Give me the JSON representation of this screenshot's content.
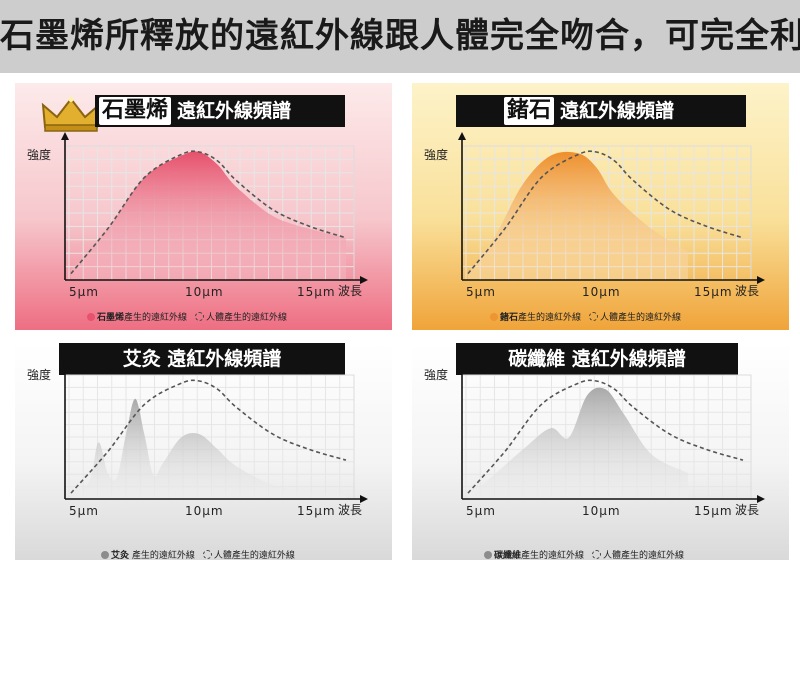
{
  "header": {
    "title": "石墨烯所釋放的遠紅外線跟人體完全吻合，可完全利用"
  },
  "colors": {
    "graphene": "#e8526c",
    "germanium": "#ef9432",
    "moxibustion": "#9a9a9a",
    "carbon_fiber": "#9a9a9a",
    "reference_curve": "#555555"
  },
  "panels": [
    {
      "title_boxed": "石墨烯",
      "title_rest": "遠紅外線頻譜",
      "y_label": "強度",
      "x_label": "波長",
      "ticks": [
        "5μm",
        "10μm",
        "15μm"
      ],
      "legend_material": "石墨烯",
      "legend_material_suffix": "產生的遠紅外線",
      "legend_human": "人體產生的遠紅外線"
    },
    {
      "title_boxed": "鍺石",
      "title_rest": "遠紅外線頻譜",
      "y_label": "強度",
      "x_label": "波長",
      "ticks": [
        "5μm",
        "10μm",
        "15μm"
      ],
      "legend_material": "鍺石",
      "legend_material_suffix": "產生的遠紅外線",
      "legend_human": "人體產生的遠紅外線"
    },
    {
      "title_full": "艾灸 遠紅外線頻譜",
      "y_label": "強度",
      "x_label": "波長",
      "ticks": [
        "5μm",
        "10μm",
        "15μm"
      ],
      "legend_material": "艾灸",
      "legend_material_suffix": " 產生的遠紅外線",
      "legend_human": "人體產生的遠紅外線"
    },
    {
      "title_full": "碳纖維 遠紅外線頻譜",
      "y_label": "強度",
      "x_label": "波長",
      "ticks": [
        "5μm",
        "10μm",
        "15μm"
      ],
      "legend_material": "碳纖維",
      "legend_material_suffix": "產生的遠紅外線",
      "legend_human": "人體產生的遠紅外線"
    }
  ],
  "chart_data": [
    {
      "type": "area",
      "x_unit": "μm",
      "xlim": [
        3,
        18
      ],
      "ylim": [
        0,
        1
      ],
      "grid": true,
      "series": [
        {
          "name": "石墨烯產生的遠紅外線",
          "x": [
            3,
            5,
            7,
            9,
            10,
            11,
            12,
            14,
            16,
            18
          ],
          "values": [
            0.08,
            0.4,
            0.8,
            0.97,
            1.0,
            0.9,
            0.73,
            0.5,
            0.4,
            0.33
          ]
        },
        {
          "name": "人體產生的遠紅外線",
          "x": [
            3,
            5,
            7,
            9,
            10,
            11,
            12,
            14,
            16,
            18
          ],
          "values": [
            0.05,
            0.4,
            0.8,
            0.98,
            1.0,
            0.93,
            0.78,
            0.55,
            0.42,
            0.33
          ]
        }
      ]
    },
    {
      "type": "area",
      "x_unit": "μm",
      "xlim": [
        3,
        18
      ],
      "ylim": [
        0,
        1
      ],
      "grid": true,
      "series": [
        {
          "name": "鍺石產生的遠紅外線",
          "x": [
            3,
            4.5,
            6,
            7.5,
            9,
            10,
            11,
            13,
            15
          ],
          "values": [
            0.05,
            0.35,
            0.75,
            0.97,
            0.99,
            0.88,
            0.66,
            0.4,
            0.22
          ]
        },
        {
          "name": "人體產生的遠紅外線",
          "x": [
            3,
            5,
            7,
            9,
            10,
            11,
            12,
            14,
            16,
            18
          ],
          "values": [
            0.05,
            0.4,
            0.8,
            0.98,
            1.0,
            0.93,
            0.78,
            0.55,
            0.42,
            0.33
          ]
        }
      ]
    },
    {
      "type": "area",
      "x_unit": "μm",
      "xlim": [
        3,
        18
      ],
      "ylim": [
        0,
        1
      ],
      "grid": true,
      "series": [
        {
          "name": "艾灸產生的遠紅外線",
          "x": [
            3,
            4,
            4.5,
            5,
            5.5,
            6,
            6.5,
            7,
            7.5,
            8,
            9,
            10,
            11,
            12,
            14,
            16,
            18
          ],
          "values": [
            0.0,
            0.15,
            0.48,
            0.22,
            0.18,
            0.55,
            0.85,
            0.55,
            0.2,
            0.3,
            0.52,
            0.55,
            0.42,
            0.28,
            0.12,
            0.06,
            0.04
          ]
        },
        {
          "name": "人體產生的遠紅外線",
          "x": [
            3,
            5,
            7,
            9,
            10,
            11,
            12,
            14,
            16,
            18
          ],
          "values": [
            0.05,
            0.4,
            0.8,
            0.98,
            1.0,
            0.93,
            0.78,
            0.55,
            0.42,
            0.33
          ]
        }
      ]
    },
    {
      "type": "area",
      "x_unit": "μm",
      "xlim": [
        3,
        18
      ],
      "ylim": [
        0,
        1
      ],
      "grid": true,
      "series": [
        {
          "name": "碳纖維產生的遠紅外線",
          "x": [
            3,
            4,
            6,
            7.5,
            8.5,
            9.5,
            10.5,
            11.5,
            13,
            15
          ],
          "values": [
            0.05,
            0.15,
            0.42,
            0.6,
            0.52,
            0.88,
            0.93,
            0.72,
            0.38,
            0.22
          ]
        },
        {
          "name": "人體產生的遠紅外線",
          "x": [
            3,
            5,
            7,
            9,
            10,
            11,
            12,
            14,
            16,
            18
          ],
          "values": [
            0.05,
            0.4,
            0.8,
            0.98,
            1.0,
            0.93,
            0.78,
            0.55,
            0.42,
            0.33
          ]
        }
      ]
    }
  ]
}
